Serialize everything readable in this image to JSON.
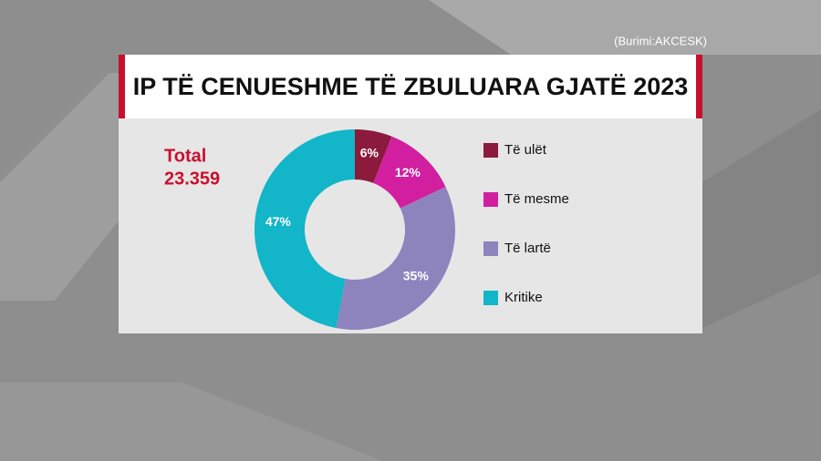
{
  "source": "(Burimi:AKCESK)",
  "chart_data": {
    "type": "donut",
    "title": "IP TË CENUESHME TË ZBULUARA GJATË 2023",
    "total_label": "Total",
    "total_value": "23.359",
    "categories": [
      "Të ulët",
      "Të mesme",
      "Të lartë",
      "Kritike"
    ],
    "values": [
      6,
      12,
      35,
      47
    ],
    "value_labels": [
      "6%",
      "12%",
      "35%",
      "47%"
    ],
    "colors": [
      "#8b1a3c",
      "#d11fa0",
      "#8d84bd",
      "#13b5c8"
    ]
  }
}
